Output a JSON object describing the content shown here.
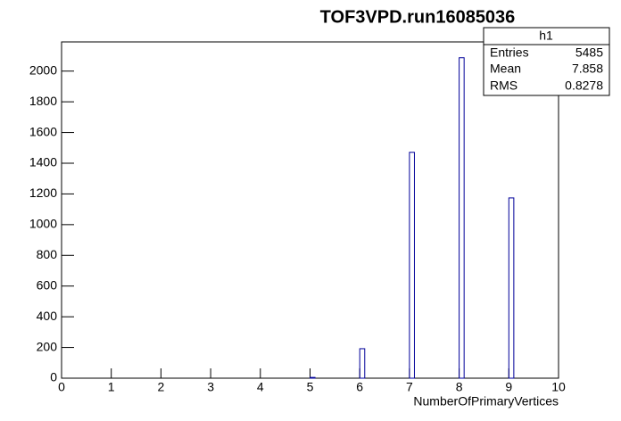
{
  "chart_data": {
    "type": "histogram",
    "title": "TOF3VPD.run16085036",
    "x_label": "NumberOfPrimaryVertices",
    "bins": [
      0,
      0.1,
      0.2,
      0.3,
      0.4,
      0.5,
      0.6,
      0.7,
      0.8,
      0.9,
      1,
      1.1,
      1.2,
      1.3,
      1.4,
      1.5,
      1.6,
      1.7,
      1.8,
      1.9,
      2,
      2.1,
      2.2,
      2.3,
      2.4,
      2.5,
      2.6,
      2.7,
      2.8,
      2.9,
      3,
      3.1,
      3.2,
      3.3,
      3.4,
      3.5,
      3.6,
      3.7,
      3.8,
      3.9,
      4,
      4.1,
      4.2,
      4.3,
      4.4,
      4.5,
      4.6,
      4.7,
      4.8,
      4.9,
      5,
      5.1,
      5.2,
      5.3,
      5.4,
      5.5,
      5.6,
      5.7,
      5.8,
      5.9,
      6,
      6.1,
      6.2,
      6.3,
      6.4,
      6.5,
      6.6,
      6.7,
      6.8,
      6.9,
      7,
      7.1,
      7.2,
      7.3,
      7.4,
      7.5,
      7.6,
      7.7,
      7.8,
      7.9,
      8,
      8.1,
      8.2,
      8.3,
      8.4,
      8.5,
      8.6,
      8.7,
      8.8,
      8.9,
      9,
      9.1,
      9.2,
      9.3,
      9.4,
      9.5,
      9.6,
      9.7,
      9.8,
      9.9,
      10
    ],
    "values": [
      0,
      0,
      0,
      0,
      0,
      0,
      0,
      0,
      0,
      0,
      0,
      0,
      0,
      0,
      0,
      0,
      0,
      0,
      0,
      0,
      0,
      0,
      0,
      0,
      0,
      0,
      0,
      0,
      0,
      0,
      0,
      0,
      0,
      0,
      0,
      0,
      0,
      0,
      0,
      0,
      0,
      0,
      0,
      0,
      0,
      0,
      0,
      0,
      0,
      0,
      5,
      0,
      0,
      0,
      0,
      0,
      0,
      0,
      0,
      0,
      192,
      0,
      0,
      0,
      0,
      0,
      0,
      0,
      0,
      0,
      1471,
      0,
      0,
      0,
      0,
      0,
      0,
      0,
      0,
      0,
      2087,
      0,
      0,
      0,
      0,
      0,
      0,
      0,
      0,
      0,
      1174,
      0,
      0,
      0,
      0,
      0,
      0,
      0,
      0,
      0
    ],
    "color": "#000099",
    "xlim": [
      0,
      10
    ],
    "xticks": [
      0,
      1,
      2,
      3,
      4,
      5,
      6,
      7,
      8,
      9,
      10
    ],
    "ylim": [
      0,
      2190
    ],
    "yticks": [
      0,
      200,
      400,
      600,
      800,
      1000,
      1200,
      1400,
      1600,
      1800,
      2000
    ],
    "stats": {
      "name": "h1",
      "rows": [
        [
          "Entries",
          "5485"
        ],
        [
          "Mean",
          "7.858"
        ],
        [
          "RMS",
          "0.8278"
        ]
      ]
    }
  }
}
